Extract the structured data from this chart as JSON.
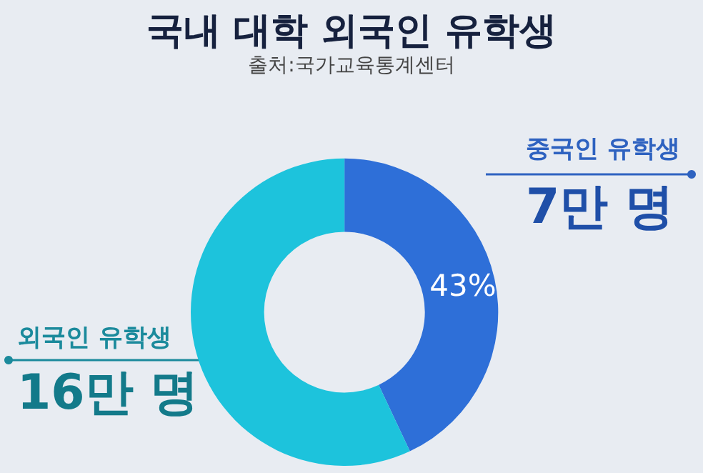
{
  "chart_data": {
    "type": "donut",
    "title": "국내 대학 외국인 유학생",
    "subtitle": "출처:국가교육통계센터",
    "categories": [
      "중국인 유학생",
      "외국인 유학생"
    ],
    "values": [
      43,
      57
    ],
    "colors": [
      "#2e6fd8",
      "#1dc3dc"
    ],
    "value_labels": [
      "43%",
      null
    ],
    "annotations": [
      "7만 명",
      "16만 명"
    ]
  }
}
